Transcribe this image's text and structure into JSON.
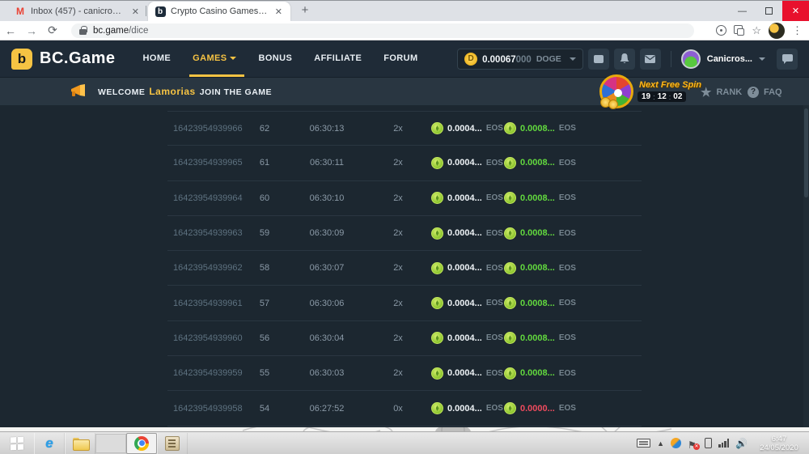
{
  "browser": {
    "tabs": [
      {
        "title": "Inbox (457) - canicrossmaxx@gm",
        "icon": "gmail-icon",
        "active": false
      },
      {
        "title": "Crypto Casino Games - The 8 Be",
        "icon": "bcgame-favicon",
        "active": true
      }
    ],
    "new_tab_label": "+",
    "address": {
      "domain": "bc.game",
      "path": "/dice"
    },
    "window_controls": {
      "minimize": "—",
      "close": "✕"
    }
  },
  "header": {
    "brand": "BC.Game",
    "logo_letter": "b",
    "nav": [
      "HOME",
      "GAMES",
      "BONUS",
      "AFFILIATE",
      "FORUM"
    ],
    "active_nav": "GAMES",
    "balance": {
      "main": "0.00067",
      "dim": "000",
      "currency": "DOGE",
      "coin_letter": "D"
    },
    "username": "Canicros...",
    "accent_color": "#f6c343"
  },
  "banner": {
    "welcome": "WELCOME",
    "player": "Lamorias",
    "join": "JOIN THE GAME",
    "next_free_spin": "Next Free Spin",
    "timer": {
      "h": "19",
      "m": "12",
      "s": "02",
      "sep": ":"
    },
    "rank": "RANK",
    "faq": "FAQ",
    "faq_mark": "?"
  },
  "table": {
    "rows": [
      {
        "id": "16423954939966",
        "roll": "62",
        "time": "06:30:13",
        "mult": "2x",
        "bet": "0.0004...",
        "bet_cur": "EOS",
        "profit": "0.0008...",
        "profit_cur": "EOS",
        "win": true
      },
      {
        "id": "16423954939965",
        "roll": "61",
        "time": "06:30:11",
        "mult": "2x",
        "bet": "0.0004...",
        "bet_cur": "EOS",
        "profit": "0.0008...",
        "profit_cur": "EOS",
        "win": true
      },
      {
        "id": "16423954939964",
        "roll": "60",
        "time": "06:30:10",
        "mult": "2x",
        "bet": "0.0004...",
        "bet_cur": "EOS",
        "profit": "0.0008...",
        "profit_cur": "EOS",
        "win": true
      },
      {
        "id": "16423954939963",
        "roll": "59",
        "time": "06:30:09",
        "mult": "2x",
        "bet": "0.0004...",
        "bet_cur": "EOS",
        "profit": "0.0008...",
        "profit_cur": "EOS",
        "win": true
      },
      {
        "id": "16423954939962",
        "roll": "58",
        "time": "06:30:07",
        "mult": "2x",
        "bet": "0.0004...",
        "bet_cur": "EOS",
        "profit": "0.0008...",
        "profit_cur": "EOS",
        "win": true
      },
      {
        "id": "16423954939961",
        "roll": "57",
        "time": "06:30:06",
        "mult": "2x",
        "bet": "0.0004...",
        "bet_cur": "EOS",
        "profit": "0.0008...",
        "profit_cur": "EOS",
        "win": true
      },
      {
        "id": "16423954939960",
        "roll": "56",
        "time": "06:30:04",
        "mult": "2x",
        "bet": "0.0004...",
        "bet_cur": "EOS",
        "profit": "0.0008...",
        "profit_cur": "EOS",
        "win": true
      },
      {
        "id": "16423954939959",
        "roll": "55",
        "time": "06:30:03",
        "mult": "2x",
        "bet": "0.0004...",
        "bet_cur": "EOS",
        "profit": "0.0008...",
        "profit_cur": "EOS",
        "win": true
      },
      {
        "id": "16423954939958",
        "roll": "54",
        "time": "06:27:52",
        "mult": "0x",
        "bet": "0.0004...",
        "bet_cur": "EOS",
        "profit": "0.0000...",
        "profit_cur": "EOS",
        "win": false
      }
    ],
    "colors": {
      "win": "#62d93e",
      "loss": "#ef4b5e",
      "coin": "#8cc52e"
    }
  },
  "taskbar": {
    "clock": {
      "time": "6:47",
      "date": "24/05/2020"
    }
  },
  "icons": {
    "gmail-icon": "M",
    "wallet-icon": "wallet",
    "bell-icon": "bell",
    "mail-icon": "envelope",
    "chat-icon": "speech-bubble",
    "megaphone-icon": "megaphone",
    "spin-wheel-icon": "color-wheel",
    "star-icon": "★",
    "eos-coin-icon": "green-coin"
  }
}
